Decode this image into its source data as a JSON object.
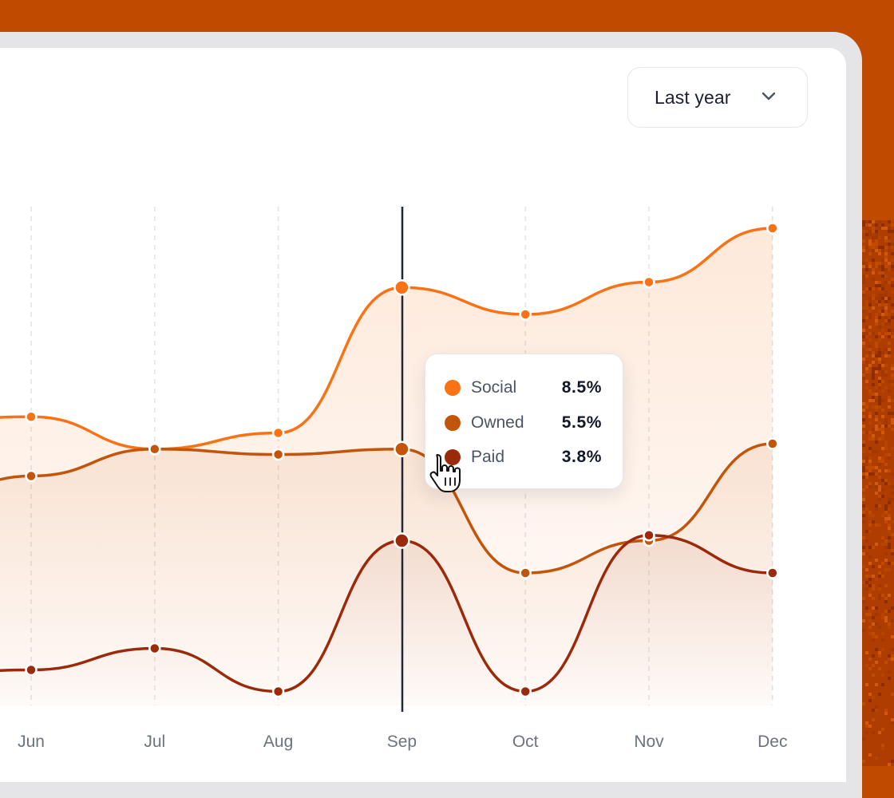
{
  "filter": {
    "selected": "Last year"
  },
  "colors": {
    "social": "#f97316",
    "owned": "#c2550a",
    "paid": "#9a2a0a",
    "background": "#c04b00"
  },
  "chart_data": {
    "type": "line",
    "title": "",
    "xlabel": "",
    "ylabel": "",
    "ylim": [
      0,
      10
    ],
    "categories": [
      "Jun",
      "Jul",
      "Aug",
      "Sep",
      "Oct",
      "Nov",
      "Dec"
    ],
    "series": [
      {
        "name": "Social",
        "color": "#f97316",
        "values": [
          6.1,
          5.5,
          5.8,
          8.5,
          8.0,
          8.6,
          9.6
        ]
      },
      {
        "name": "Owned",
        "color": "#c2550a",
        "values": [
          5.0,
          5.5,
          5.4,
          5.5,
          3.2,
          3.8,
          5.6
        ]
      },
      {
        "name": "Paid",
        "color": "#9a2a0a",
        "values": [
          1.4,
          1.8,
          1.0,
          3.8,
          1.0,
          3.9,
          3.2
        ]
      }
    ],
    "partial_left_values": {
      "Social": 6.0,
      "Owned": 4.4,
      "Paid": 1.3
    },
    "highlight": "Sep",
    "tooltip": [
      {
        "name": "Social",
        "value": "8.5%"
      },
      {
        "name": "Owned",
        "value": "5.5%"
      },
      {
        "name": "Paid",
        "value": "3.8%"
      }
    ]
  }
}
